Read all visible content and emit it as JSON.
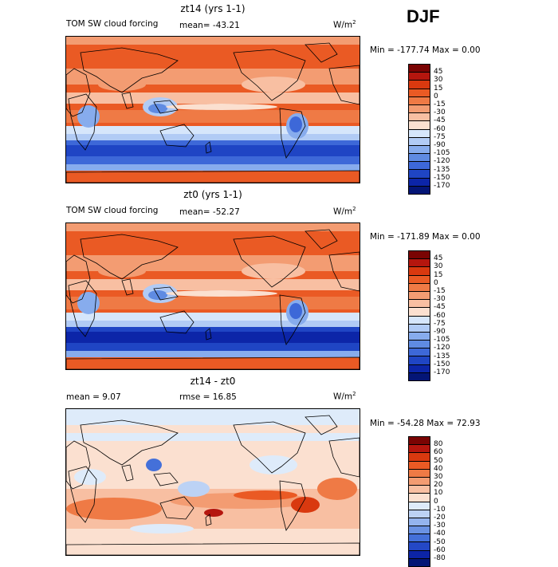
{
  "season": "DJF",
  "panels": [
    {
      "title": "zt14 (yrs 1-1)",
      "left_label": "TOM SW cloud forcing",
      "mean_text": "mean= -43.21",
      "units": "W/m",
      "units_sup": "2",
      "minmax": "Min = -177.74 Max =    0.00",
      "colorbar": {
        "labels": [
          "45",
          "30",
          "15",
          "0",
          "-15",
          "-30",
          "-45",
          "-60",
          "-75",
          "-90",
          "-105",
          "-120",
          "-135",
          "-150",
          "-170"
        ],
        "colors": [
          "#7a0403",
          "#b5160e",
          "#d9390f",
          "#ea5a24",
          "#ef7a45",
          "#f39c72",
          "#f8bfa2",
          "#fbe0d0",
          "#d6e6fb",
          "#b1cbf5",
          "#87aced",
          "#5f8be2",
          "#3d68d8",
          "#1f45c4",
          "#0c25a8",
          "#041576"
        ]
      }
    },
    {
      "title": "zt0 (yrs 1-1)",
      "left_label": "TOM SW cloud forcing",
      "mean_text": "mean= -52.27",
      "units": "W/m",
      "units_sup": "2",
      "minmax": "Min = -171.89 Max =    0.00",
      "colorbar": {
        "labels": [
          "45",
          "30",
          "15",
          "0",
          "-15",
          "-30",
          "-45",
          "-60",
          "-75",
          "-90",
          "-105",
          "-120",
          "-135",
          "-150",
          "-170"
        ],
        "colors": [
          "#7a0403",
          "#b5160e",
          "#d9390f",
          "#ea5a24",
          "#ef7a45",
          "#f39c72",
          "#f8bfa2",
          "#fbe0d0",
          "#d6e6fb",
          "#b1cbf5",
          "#87aced",
          "#5f8be2",
          "#3d68d8",
          "#1f45c4",
          "#0c25a8",
          "#041576"
        ]
      }
    },
    {
      "title": "zt14 - zt0",
      "mean_text": "mean =    9.07",
      "rmse_text": "rmse =   16.85",
      "units": "W/m",
      "units_sup": "2",
      "minmax": "Min = -54.28 Max =  72.93",
      "colorbar": {
        "labels": [
          "80",
          "60",
          "50",
          "40",
          "30",
          "20",
          "10",
          "0",
          "-10",
          "-20",
          "-30",
          "-40",
          "-50",
          "-60",
          "-80"
        ],
        "colors": [
          "#7a0403",
          "#b5160e",
          "#d9390f",
          "#ea5a24",
          "#ef7a45",
          "#f39c72",
          "#f8bfa2",
          "#fbe0d0",
          "#deebfa",
          "#bcd2f5",
          "#94b4ee",
          "#6a92e3",
          "#4470d9",
          "#2448c6",
          "#0c24a6",
          "#041575"
        ]
      }
    }
  ]
}
